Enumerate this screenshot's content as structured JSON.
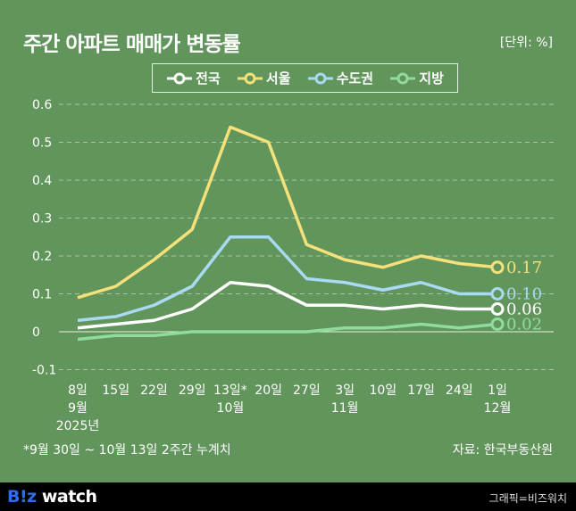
{
  "header": {
    "title": "주간 아파트 매매가 변동률",
    "unit": "[단위: %]"
  },
  "footer": {
    "note": "*9월 30일 ~ 10월 13일 2주간 누계치",
    "source": "자료: 한국부동산원",
    "logo_b": "B!z",
    "logo_rest": " watch",
    "credit": "그래픽=비즈워치"
  },
  "chart_data": {
    "type": "line",
    "title": "주간 아파트 매매가 변동률",
    "ylim": [
      -0.1,
      0.6
    ],
    "yticks": [
      "0.6",
      "0.5",
      "0.4",
      "0.3",
      "0.2",
      "0.1",
      "0",
      "-0.1"
    ],
    "ytick_values": [
      0.6,
      0.5,
      0.4,
      0.3,
      0.2,
      0.1,
      0,
      -0.1
    ],
    "categories": [
      "8일",
      "15일",
      "22일",
      "29일",
      "13일*",
      "20일",
      "27일",
      "3일",
      "10일",
      "17일",
      "24일",
      "1일"
    ],
    "month_labels": {
      "0": "9월",
      "4": "10월",
      "7": "11월",
      "11": "12월"
    },
    "year_label": "2025년",
    "legend_placement": "top-center",
    "series": [
      {
        "name": "전국",
        "color": "#ffffff",
        "values": [
          0.01,
          0.02,
          0.03,
          0.06,
          0.13,
          0.12,
          0.07,
          0.07,
          0.06,
          0.07,
          0.06,
          0.06
        ],
        "end_label": "0.06"
      },
      {
        "name": "서울",
        "color": "#f5e17a",
        "values": [
          0.09,
          0.12,
          0.19,
          0.27,
          0.54,
          0.5,
          0.23,
          0.19,
          0.17,
          0.2,
          0.18,
          0.17
        ],
        "end_label": "0.17"
      },
      {
        "name": "수도권",
        "color": "#a9daf2",
        "values": [
          0.03,
          0.04,
          0.07,
          0.12,
          0.25,
          0.25,
          0.14,
          0.13,
          0.11,
          0.13,
          0.1,
          0.1
        ],
        "end_label": "0.10"
      },
      {
        "name": "지방",
        "color": "#8fdc9c",
        "values": [
          -0.02,
          -0.01,
          -0.01,
          0.0,
          0.0,
          0.0,
          0.0,
          0.01,
          0.01,
          0.02,
          0.01,
          0.02
        ],
        "end_label": "0.02"
      }
    ]
  }
}
